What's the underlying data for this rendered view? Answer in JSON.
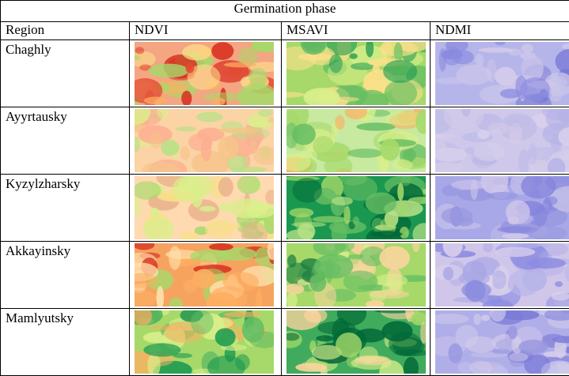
{
  "table": {
    "title": "Germination phase",
    "header": [
      "Region",
      "NDVI",
      "MSAVI",
      "NDMI"
    ],
    "rows": [
      "Chaghly",
      "Ayyrtausky",
      "Kyzylzharsky",
      "Akkayinsky",
      "Mamlyutsky"
    ]
  }
}
